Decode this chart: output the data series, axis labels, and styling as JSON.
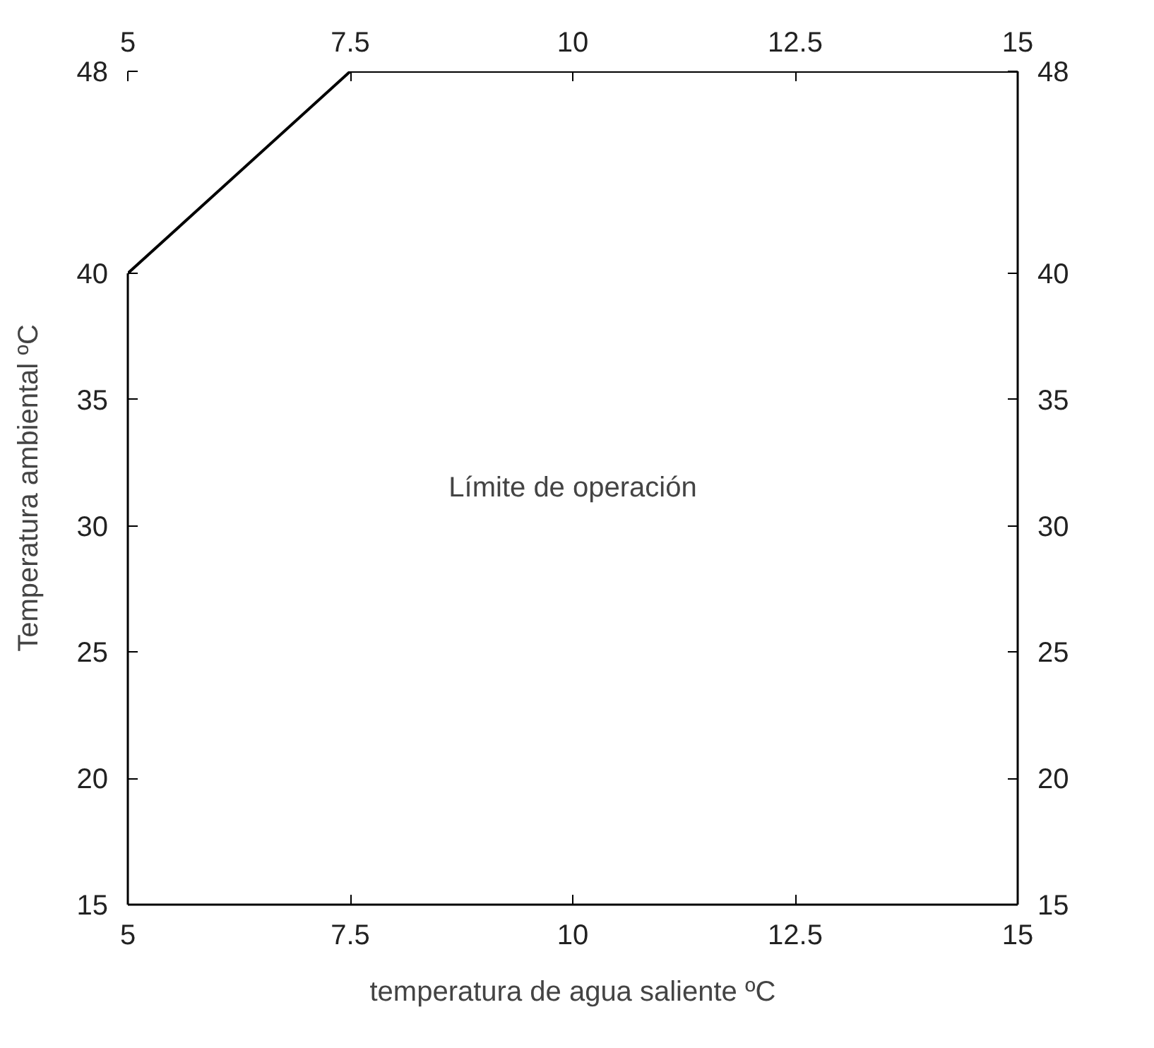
{
  "chart_data": {
    "type": "line",
    "xlabel": "temperatura de agua saliente ºC",
    "ylabel": "Temperatura ambiental ºC",
    "series": [
      {
        "color": "#000000",
        "x": [
          5,
          7.5,
          15
        ],
        "values": [
          40,
          48,
          48
        ]
      }
    ],
    "xlim": [
      5,
      15
    ],
    "xticks": [
      5,
      7.5,
      10,
      12.5,
      15
    ],
    "x2lim": [
      5,
      15
    ],
    "x2ticks": [
      5,
      7.5,
      10,
      12.5,
      15
    ],
    "ylim": [
      15,
      48
    ],
    "yticks": [
      15,
      20,
      25,
      30,
      35,
      40,
      48
    ],
    "y2lim": [
      15,
      48
    ],
    "y2ticks": [
      15,
      20,
      25,
      30,
      35,
      40,
      48
    ],
    "annotations": [
      "Límite de operación"
    ],
    "grid": false,
    "marker": "none",
    "line_style": "solid"
  }
}
